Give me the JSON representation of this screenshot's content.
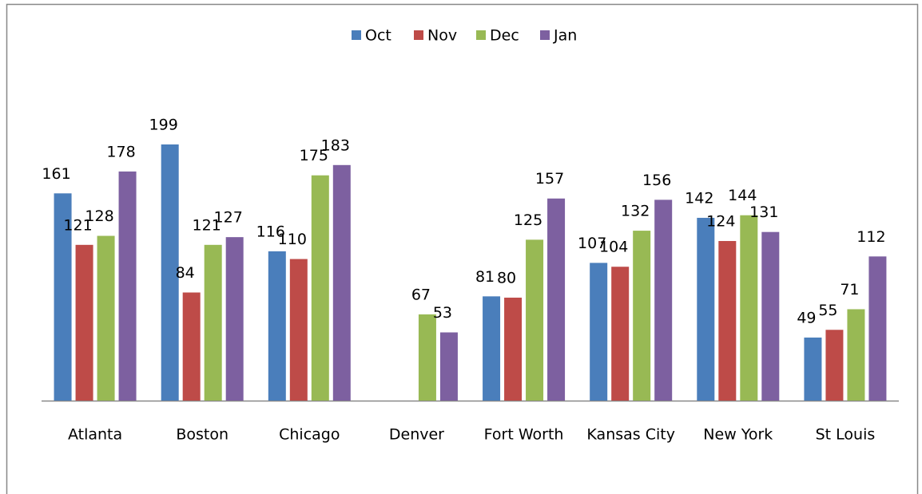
{
  "chart_data": {
    "type": "bar",
    "categories": [
      "Atlanta",
      "Boston",
      "Chicago",
      "Denver",
      "Fort Worth",
      "Kansas City",
      "New York",
      "St Louis"
    ],
    "series": [
      {
        "name": "Oct",
        "color": "#4a7ebb",
        "values": [
          161,
          199,
          116,
          null,
          81,
          107,
          142,
          49
        ]
      },
      {
        "name": "Nov",
        "color": "#be4b48",
        "values": [
          121,
          84,
          110,
          null,
          80,
          104,
          124,
          55
        ]
      },
      {
        "name": "Dec",
        "color": "#98b954",
        "values": [
          128,
          121,
          175,
          67,
          125,
          132,
          144,
          71
        ]
      },
      {
        "name": "Jan",
        "color": "#7d60a0",
        "values": [
          178,
          127,
          183,
          53,
          157,
          156,
          131,
          112
        ]
      }
    ],
    "legend": "top"
  }
}
